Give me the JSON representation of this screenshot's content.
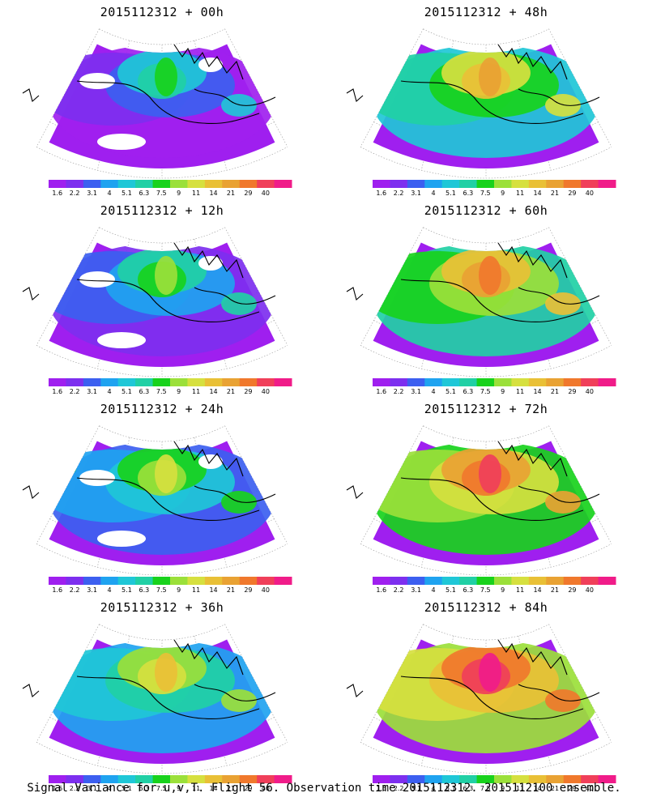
{
  "footer": {
    "caption": "Signal Variance for u,v,T. Flight 56. Observation time 2015112312. 2015112100 ensemble."
  },
  "colorbar": {
    "labels": [
      "1.6",
      "2.2",
      "3.1",
      "4",
      "5.1",
      "6.3",
      "7.5",
      "9",
      "11",
      "14",
      "21",
      "29",
      "40"
    ],
    "colors": [
      "#9f1fef",
      "#7d2fef",
      "#3c5ff0",
      "#1fa3f0",
      "#1fc7d7",
      "#21d0a5",
      "#18d21c",
      "#9be03a",
      "#d6e03f",
      "#e9c036",
      "#e9a233",
      "#f0782c",
      "#f03f5a",
      "#f01c89"
    ]
  },
  "panels": [
    {
      "title": "2015112312 + 00h",
      "level": 0
    },
    {
      "title": "2015112312 + 48h",
      "level": 4
    },
    {
      "title": "2015112312 + 12h",
      "level": 1
    },
    {
      "title": "2015112312 + 60h",
      "level": 5
    },
    {
      "title": "2015112312 + 24h",
      "level": 2
    },
    {
      "title": "2015112312 + 72h",
      "level": 6
    },
    {
      "title": "2015112312 + 36h",
      "level": 3
    },
    {
      "title": "2015112312 + 84h",
      "level": 7
    }
  ]
}
